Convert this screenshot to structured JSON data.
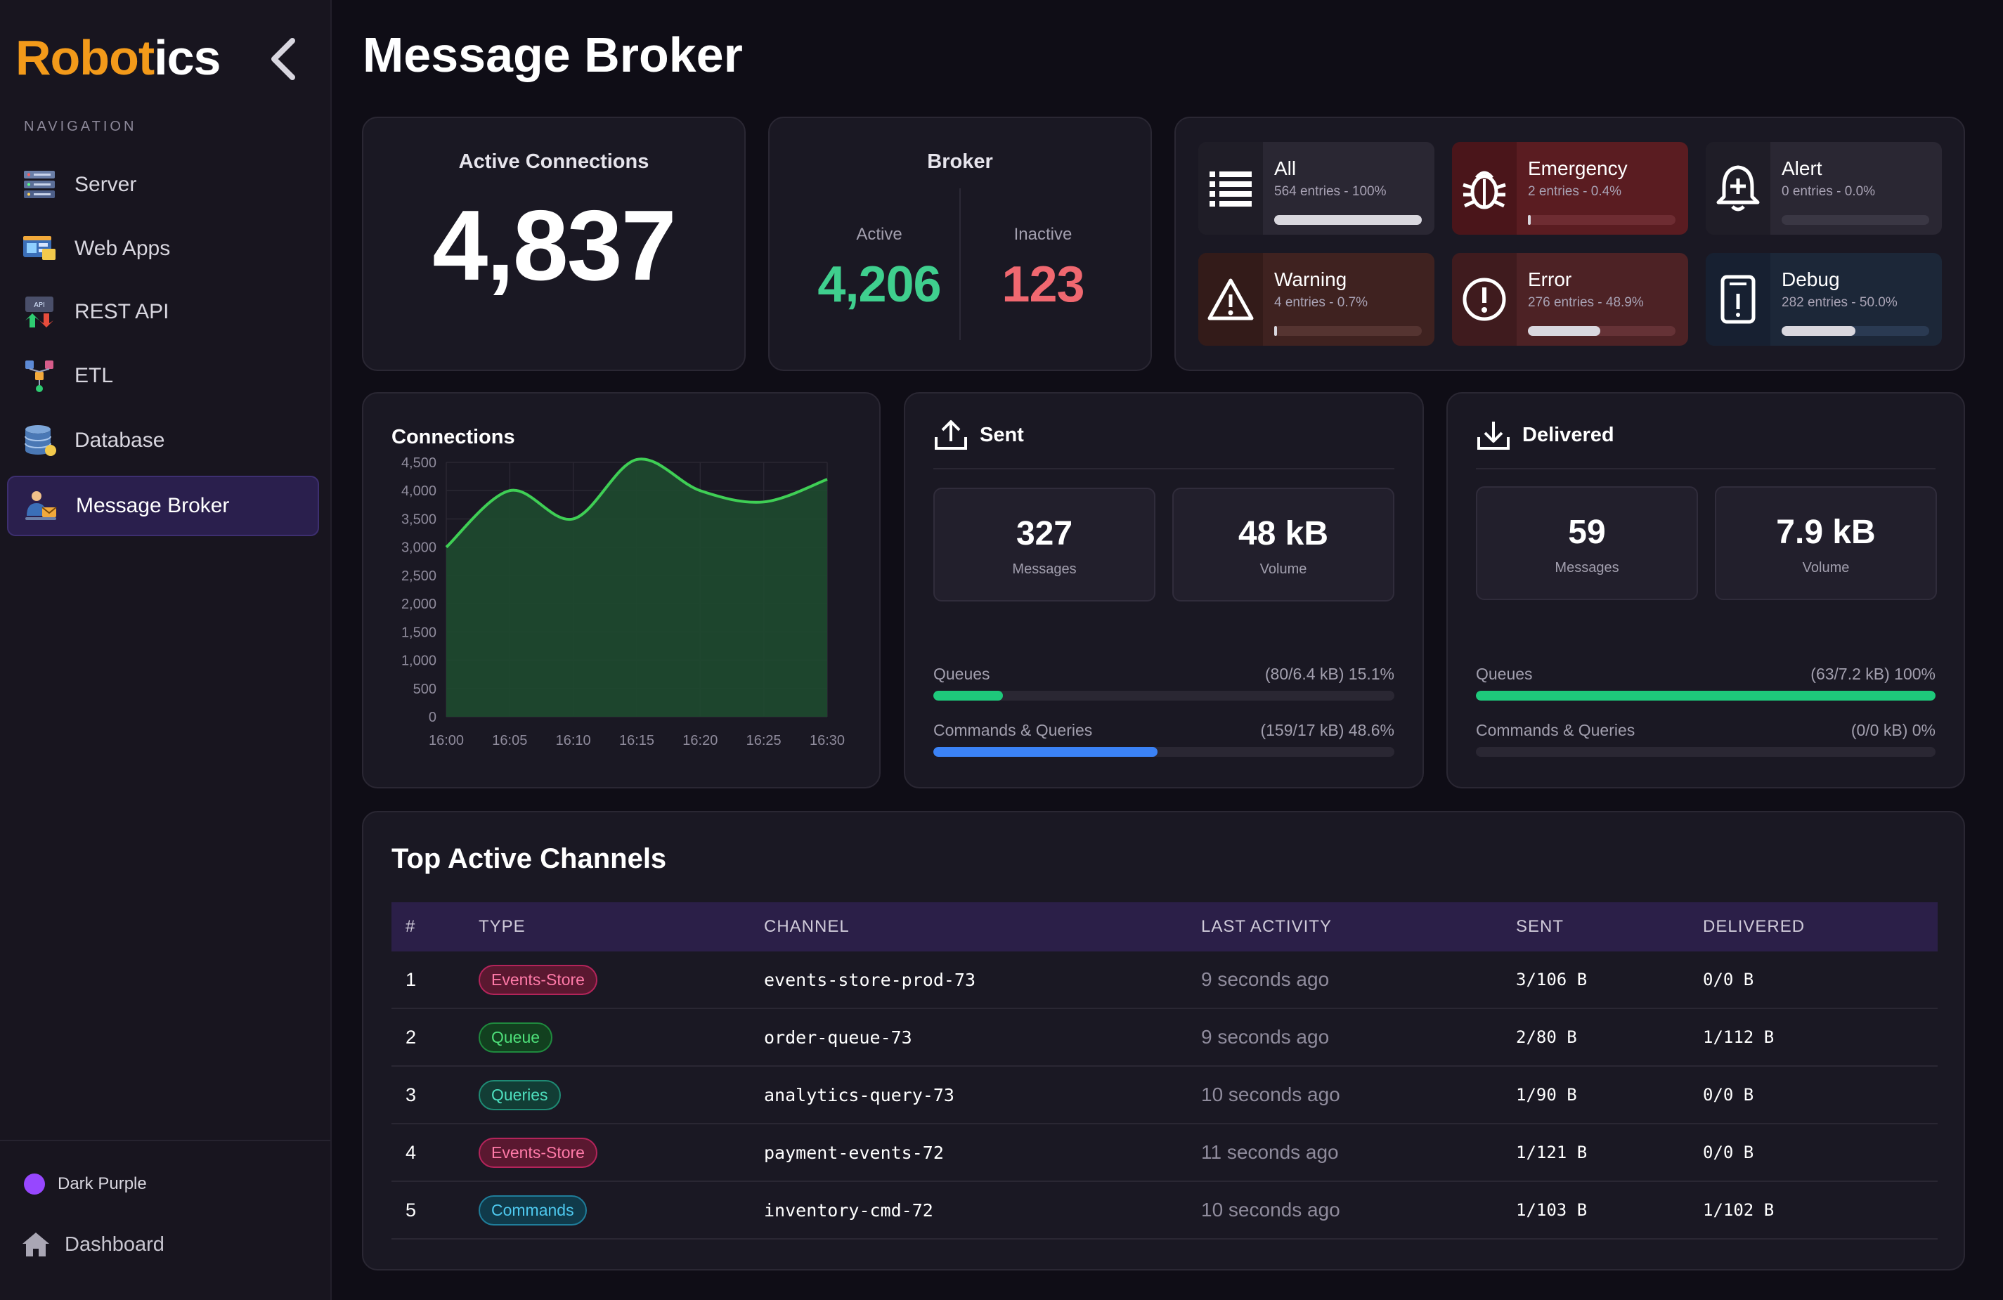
{
  "app": {
    "brand_part1": "Robot",
    "brand_part2": "ics",
    "title": "Message Broker"
  },
  "sidebar": {
    "heading": "NAVIGATION",
    "items": [
      {
        "label": "Server"
      },
      {
        "label": "Web Apps"
      },
      {
        "label": "REST API"
      },
      {
        "label": "ETL"
      },
      {
        "label": "Database"
      },
      {
        "label": "Message Broker",
        "active": true
      }
    ],
    "theme_label": "Dark Purple",
    "dashboard_label": "Dashboard"
  },
  "active_connections": {
    "title": "Active Connections",
    "value": "4,837"
  },
  "broker": {
    "title": "Broker",
    "active_label": "Active",
    "active_value": "4,206",
    "active_color": "#3fcf8e",
    "inactive_label": "Inactive",
    "inactive_value": "123",
    "inactive_color": "#f06870"
  },
  "logs": [
    {
      "name": "All",
      "sub": "564 entries - 100%",
      "icon": "list-icon",
      "fill": 1.0
    },
    {
      "name": "Emergency",
      "sub": "2 entries - 0.4%",
      "icon": "bug-icon",
      "fill": 0.004
    },
    {
      "name": "Alert",
      "sub": "0 entries - 0.0%",
      "icon": "bell-icon",
      "fill": 0.0
    },
    {
      "name": "Warning",
      "sub": "4 entries - 0.7%",
      "icon": "warning-icon",
      "fill": 0.007
    },
    {
      "name": "Error",
      "sub": "276 entries - 48.9%",
      "icon": "error-icon",
      "fill": 0.489
    },
    {
      "name": "Debug",
      "sub": "282 entries - 50.0%",
      "icon": "debug-icon",
      "fill": 0.5
    }
  ],
  "chart_data": {
    "type": "area",
    "title": "Connections",
    "x": [
      "16:00",
      "16:05",
      "16:10",
      "16:15",
      "16:20",
      "16:25",
      "16:30"
    ],
    "values": [
      3000,
      4000,
      3500,
      4550,
      4000,
      3800,
      4200
    ],
    "yticks": [
      0,
      500,
      1000,
      1500,
      2000,
      2500,
      3000,
      3500,
      4000,
      4500
    ],
    "ytick_labels": [
      "0",
      "500",
      "1,000",
      "1,500",
      "2,000",
      "2,500",
      "3,000",
      "3,500",
      "4,000",
      "4,500"
    ],
    "ylim": [
      0,
      4500
    ],
    "xlabel": "",
    "ylabel": "",
    "line_color": "#3fcf55",
    "fill_color": "#1e4a2f"
  },
  "sent": {
    "title": "Sent",
    "messages_value": "327",
    "messages_label": "Messages",
    "volume_value": "48 kB",
    "volume_label": "Volume",
    "queues_label": "Queues",
    "queues_detail": "(80/6.4 kB) 15.1%",
    "queues_pct": 15.1,
    "cq_label": "Commands & Queries",
    "cq_detail": "(159/17 kB) 48.6%",
    "cq_pct": 48.6
  },
  "delivered": {
    "title": "Delivered",
    "messages_value": "59",
    "messages_label": "Messages",
    "volume_value": "7.9 kB",
    "volume_label": "Volume",
    "queues_label": "Queues",
    "queues_detail": "(63/7.2 kB) 100%",
    "queues_pct": 100,
    "cq_label": "Commands & Queries",
    "cq_detail": "(0/0 kB) 0%",
    "cq_pct": 0
  },
  "channels": {
    "title": "Top Active Channels",
    "headers": {
      "num": "#",
      "type": "TYPE",
      "channel": "CHANNEL",
      "last": "LAST ACTIVITY",
      "sent": "SENT",
      "delivered": "DELIVERED"
    },
    "rows": [
      {
        "num": "1",
        "type": "Events-Store",
        "channel": "events-store-prod-73",
        "last": "9 seconds ago",
        "sent": "3/106 B",
        "delivered": "0/0 B"
      },
      {
        "num": "2",
        "type": "Queue",
        "channel": "order-queue-73",
        "last": "9 seconds ago",
        "sent": "2/80 B",
        "delivered": "1/112 B"
      },
      {
        "num": "3",
        "type": "Queries",
        "channel": "analytics-query-73",
        "last": "10 seconds ago",
        "sent": "1/90 B",
        "delivered": "0/0 B"
      },
      {
        "num": "4",
        "type": "Events-Store",
        "channel": "payment-events-72",
        "last": "11 seconds ago",
        "sent": "1/121 B",
        "delivered": "0/0 B"
      },
      {
        "num": "5",
        "type": "Commands",
        "channel": "inventory-cmd-72",
        "last": "10 seconds ago",
        "sent": "1/103 B",
        "delivered": "1/102 B"
      }
    ]
  },
  "colors": {
    "accent": "#f39a1a",
    "progress_green": "#1ec97b",
    "progress_blue": "#3b82f6"
  }
}
